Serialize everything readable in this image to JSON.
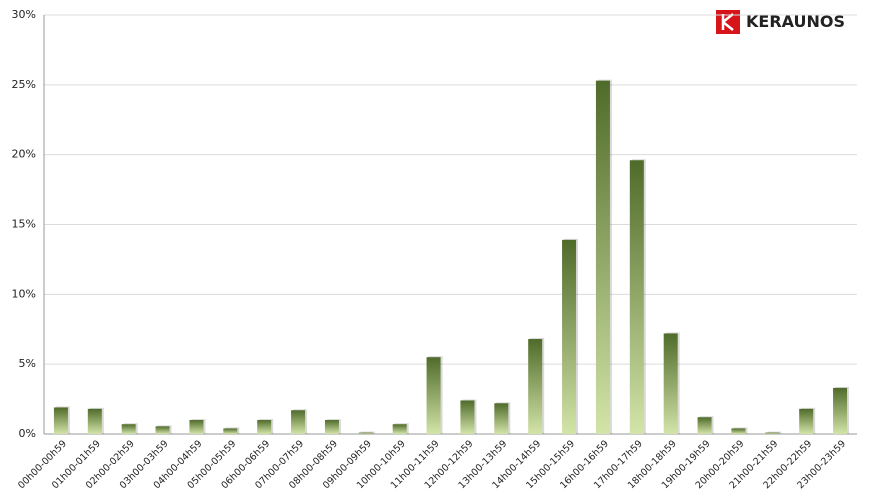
{
  "logo": "KERAUNOS",
  "chart_data": {
    "type": "bar",
    "categories": [
      "00h00-00h59",
      "01h00-01h59",
      "02h00-02h59",
      "03h00-03h59",
      "04h00-04h59",
      "05h00-05h59",
      "06h00-06h59",
      "07h00-07h59",
      "08h00-08h59",
      "09h00-09h59",
      "10h00-10h59",
      "11h00-11h59",
      "12h00-12h59",
      "13h00-13h59",
      "14h00-14h59",
      "15h00-15h59",
      "16h00-16h59",
      "17h00-17h59",
      "18h00-18h59",
      "19h00-19h59",
      "20h00-20h59",
      "21h00-21h59",
      "22h00-22h59",
      "23h00-23h59"
    ],
    "values": [
      1.9,
      1.8,
      0.7,
      0.55,
      1.0,
      0.4,
      1.0,
      1.7,
      1.0,
      0.1,
      0.7,
      5.5,
      2.4,
      2.2,
      6.8,
      13.9,
      25.3,
      19.6,
      7.2,
      1.2,
      0.4,
      0.1,
      1.8,
      3.3
    ],
    "color": [
      "#4f6b2a",
      "#d3e4a8"
    ],
    "ylim": [
      0,
      30
    ],
    "yticks": [
      {
        "value": 0,
        "label": "0%"
      },
      {
        "value": 5,
        "label": "5%"
      },
      {
        "value": 10,
        "label": "10%"
      },
      {
        "value": 15,
        "label": "15%"
      },
      {
        "value": 20,
        "label": "20%"
      },
      {
        "value": 25,
        "label": "25%"
      },
      {
        "value": 30,
        "label": "30%"
      }
    ],
    "grid": true
  }
}
